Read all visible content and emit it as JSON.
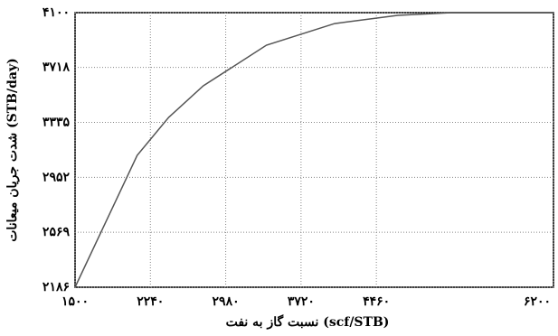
{
  "chart_data": {
    "type": "line",
    "xlabel": "نسبت گاز به نفت (scf/STB)",
    "ylabel": "شدت جریان میعانات (STB/day)",
    "x": [
      1500,
      2110,
      2420,
      2760,
      3380,
      4050,
      4670,
      5200,
      6200
    ],
    "series": [
      {
        "color": "#555555",
        "values": [
          2186,
          3105,
          3370,
          3590,
          3873,
          4024,
          4081,
          4100,
          4100
        ]
      }
    ],
    "xlim": [
      1500,
      6200
    ],
    "xticks": [
      {
        "value": 1500,
        "label": "۱۵۰۰"
      },
      {
        "value": 2240,
        "label": "۲۲۴۰"
      },
      {
        "value": 2980,
        "label": "۲۹۸۰"
      },
      {
        "value": 3720,
        "label": "۳۷۲۰"
      },
      {
        "value": 4460,
        "label": "۴۴۶۰"
      },
      {
        "value": 6200,
        "label": "۶۲۰۰"
      }
    ],
    "ylim": [
      2186,
      4100
    ],
    "yticks": [
      {
        "value": 2186,
        "label": "۲۱۸۶"
      },
      {
        "value": 2569,
        "label": "۲۵۶۹"
      },
      {
        "value": 2952,
        "label": "۲۹۵۲"
      },
      {
        "value": 3335,
        "label": "۳۳۳۵"
      },
      {
        "value": 3718,
        "label": "۳۷۱۸"
      },
      {
        "value": 4100,
        "label": "۴۱۰۰"
      }
    ],
    "grid": true
  }
}
